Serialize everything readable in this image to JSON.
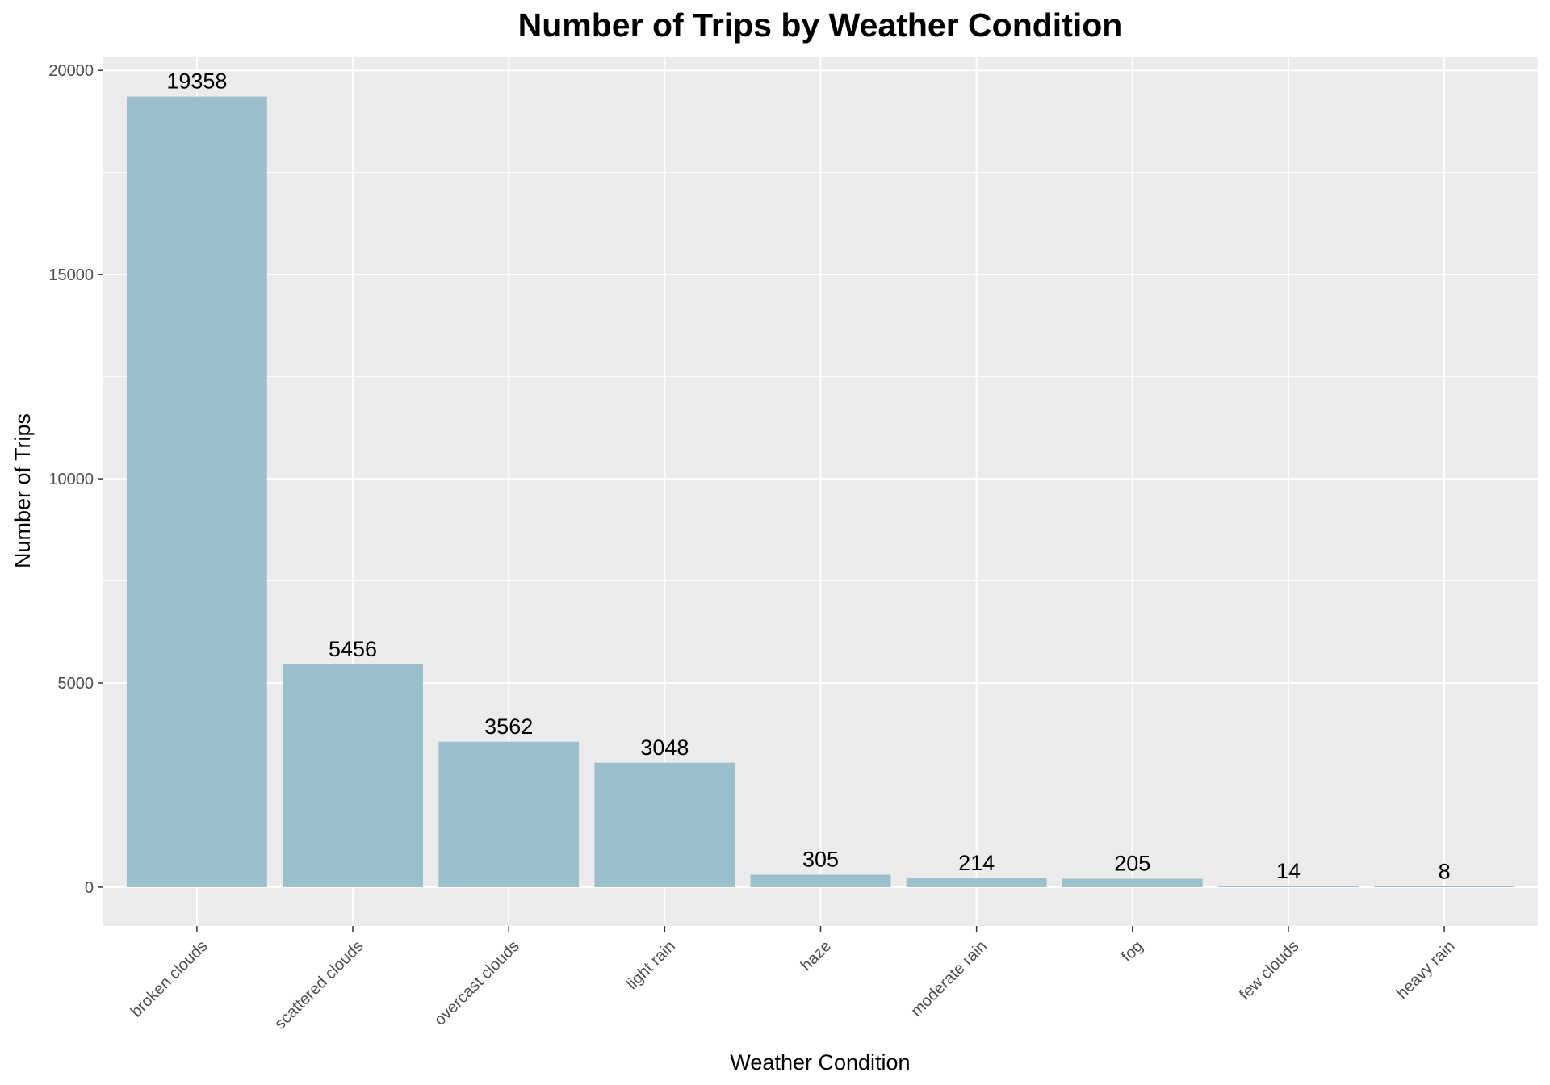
{
  "chart_data": {
    "type": "bar",
    "title": "Number of Trips by Weather Condition",
    "xlabel": "Weather Condition",
    "ylabel": "Number of Trips",
    "categories": [
      "broken clouds",
      "scattered clouds",
      "overcast clouds",
      "light rain",
      "haze",
      "moderate rain",
      "fog",
      "few clouds",
      "heavy rain"
    ],
    "values": [
      19358,
      5456,
      3562,
      3048,
      305,
      214,
      205,
      14,
      8
    ],
    "data_labels": [
      "19358",
      "5456",
      "3562",
      "3048",
      "305",
      "214",
      "205",
      "14",
      "8"
    ],
    "ylim": [
      -950,
      20340
    ],
    "yticks": [
      0,
      5000,
      10000,
      15000,
      20000
    ],
    "ytick_labels": [
      "0",
      "5000",
      "10000",
      "15000",
      "20000"
    ],
    "grid": true,
    "legend": "none",
    "colors": {
      "bar": "#9bbfcb",
      "panel": "#ebebeb",
      "grid": "#ffffff",
      "tick_text": "#4d4d4d",
      "tick": "#333333"
    }
  }
}
